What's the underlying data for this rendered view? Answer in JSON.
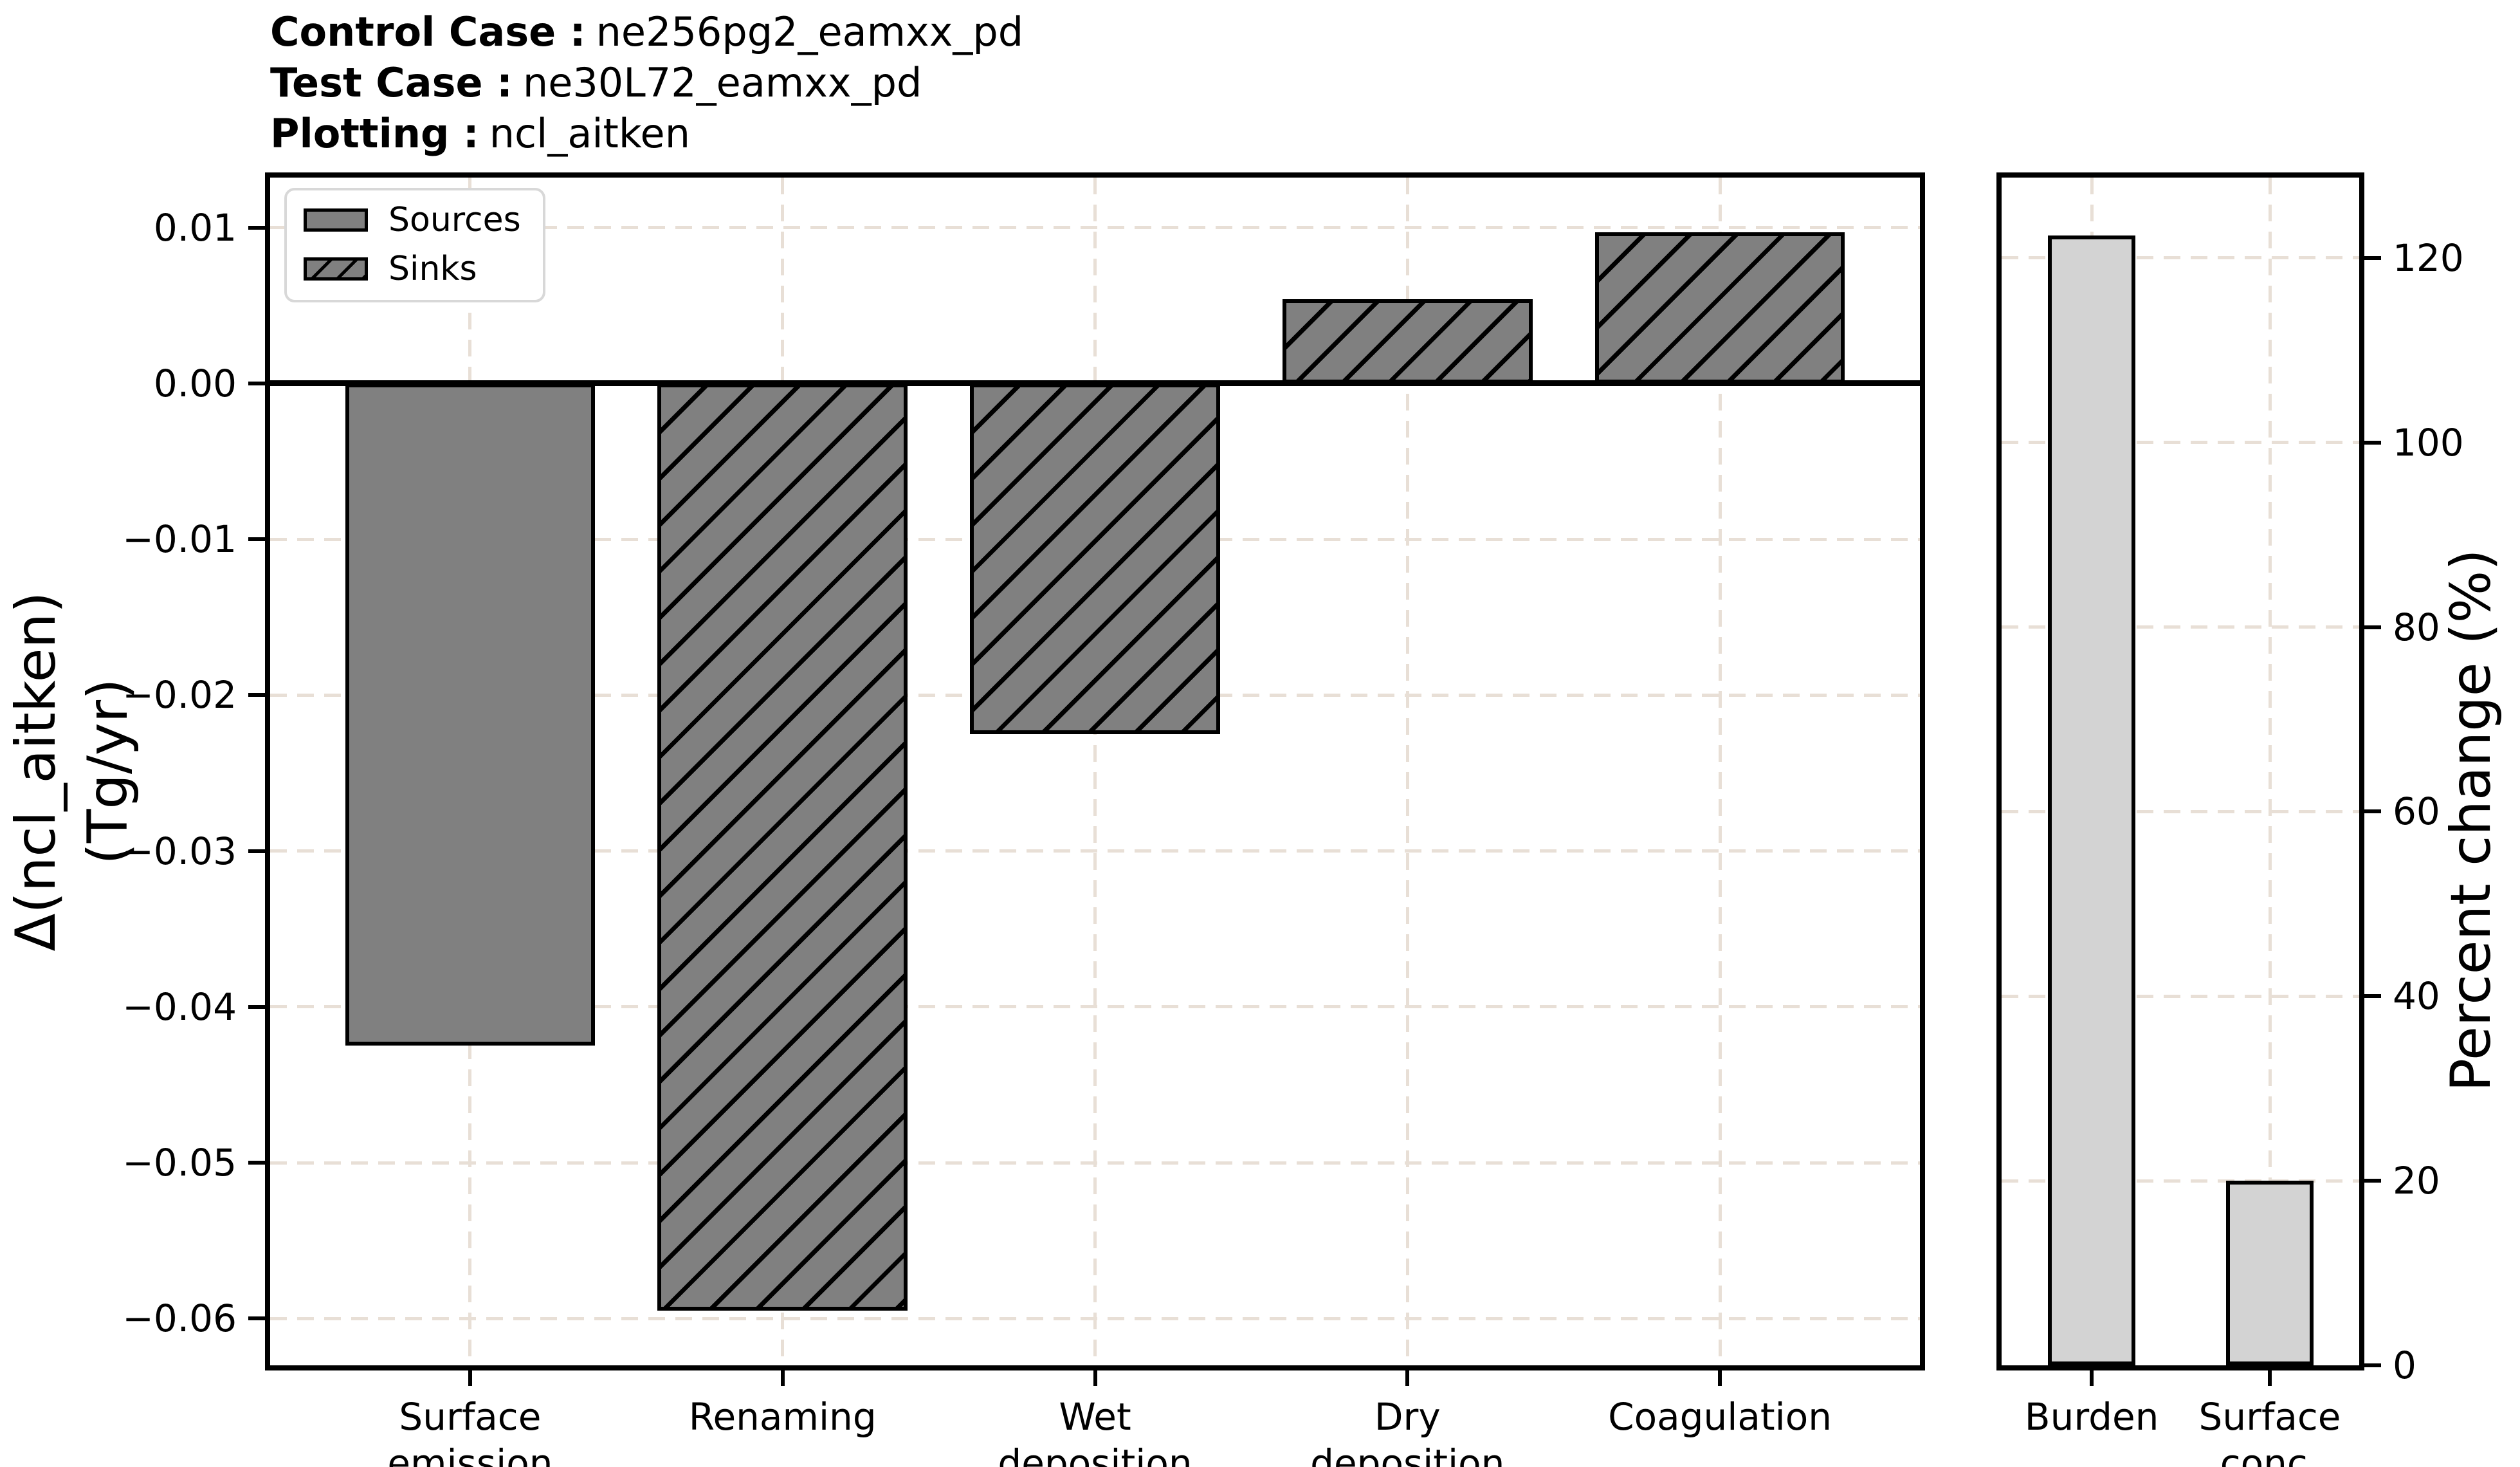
{
  "header": {
    "lines": [
      {
        "label": "Control Case :",
        "value": "ne256pg2_eamxx_pd"
      },
      {
        "label": "Test Case :",
        "value": "ne30L72_eamxx_pd"
      },
      {
        "label": "Plotting :",
        "value": "ncl_aitken"
      }
    ]
  },
  "legend": {
    "items": [
      {
        "label": "Sources",
        "style": "solid"
      },
      {
        "label": "Sinks",
        "style": "hatch"
      }
    ]
  },
  "colors": {
    "bar_gray": "#808080",
    "bar_lightgray": "#d3d3d3",
    "edge": "#000000",
    "grid": "#e8dfd6",
    "legend_border": "#d8d8d8",
    "background": "#ffffff"
  },
  "chart_data": [
    {
      "type": "bar",
      "panel": "flux",
      "title": "",
      "ylabel": "Δ(ncl_aitken) (Tg/yr)",
      "ylabel_lines": [
        "Δ(ncl_aitken)",
        "(Tg/yr)"
      ],
      "categories": [
        "Surface emission",
        "Renaming",
        "Wet deposition",
        "Dry deposition",
        "Coagulation"
      ],
      "category_labels": [
        "Surface\nemission",
        "Renaming",
        "Wet\ndeposition",
        "Dry\ndeposition",
        "Coagulation"
      ],
      "values": [
        -0.0425,
        -0.0595,
        -0.0225,
        0.0054,
        0.0097
      ],
      "bar_styles": [
        "solid",
        "hatch",
        "hatch",
        "hatch",
        "hatch"
      ],
      "series_legend": {
        "solid": "Sources",
        "hatch": "Sinks"
      },
      "ylim": [
        -0.063,
        0.0132
      ],
      "yticks": [
        {
          "v": 0.01,
          "label": "0.01"
        },
        {
          "v": 0.0,
          "label": "0.00"
        },
        {
          "v": -0.01,
          "label": "−0.01"
        },
        {
          "v": -0.02,
          "label": "−0.02"
        },
        {
          "v": -0.03,
          "label": "−0.03"
        },
        {
          "v": -0.04,
          "label": "−0.04"
        },
        {
          "v": -0.05,
          "label": "−0.05"
        },
        {
          "v": -0.06,
          "label": "−0.06"
        }
      ],
      "grid": true,
      "legend_position": "upper left",
      "zero_line": true
    },
    {
      "type": "bar",
      "panel": "percent",
      "title": "",
      "ylabel": "Percent change (%)",
      "categories": [
        "Burden",
        "Surface conc."
      ],
      "category_labels": [
        "Burden",
        "Surface\nconc."
      ],
      "values": [
        122.4,
        20.0
      ],
      "bar_styles": [
        "light",
        "light"
      ],
      "ylim": [
        0,
        128.7
      ],
      "yticks": [
        {
          "v": 0,
          "label": "0"
        },
        {
          "v": 20,
          "label": "20"
        },
        {
          "v": 40,
          "label": "40"
        },
        {
          "v": 60,
          "label": "60"
        },
        {
          "v": 80,
          "label": "80"
        },
        {
          "v": 100,
          "label": "100"
        },
        {
          "v": 120,
          "label": "120"
        }
      ],
      "grid": true
    }
  ]
}
